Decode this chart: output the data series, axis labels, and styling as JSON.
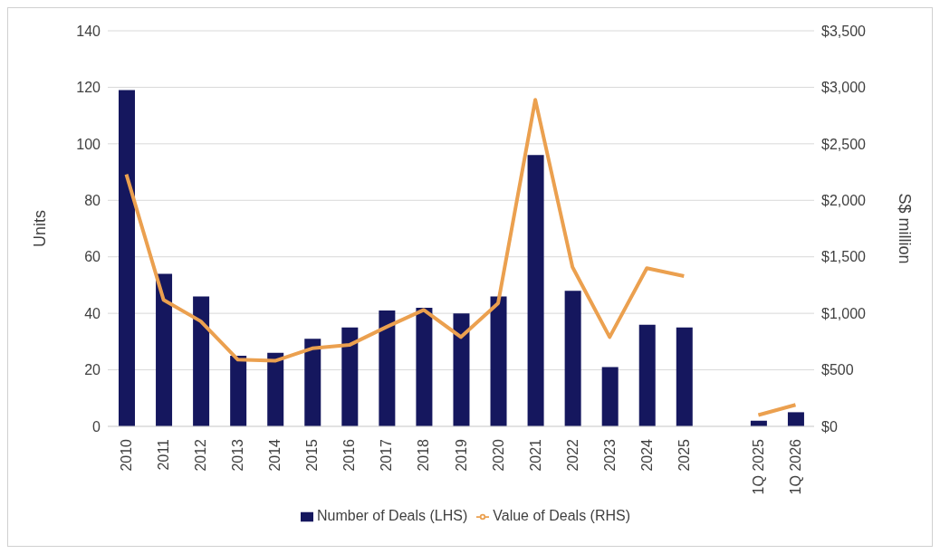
{
  "chart_data": {
    "type": "bar",
    "ylabel": "Units",
    "y2label": "S$ million",
    "categories": [
      "2010",
      "2011",
      "2012",
      "2013",
      "2014",
      "2015",
      "2016",
      "2017",
      "2018",
      "2019",
      "2020",
      "2021",
      "2022",
      "2023",
      "2024",
      "2025",
      null,
      "1Q 2025",
      "1Q 2026"
    ],
    "series": [
      {
        "name": "Number of Deals (LHS)",
        "color": "#15175e",
        "values": [
          119,
          54,
          46,
          25,
          26,
          31,
          35,
          41,
          42,
          40,
          46,
          96,
          48,
          21,
          36,
          35,
          null,
          2,
          5
        ]
      },
      {
        "name": "Value of Deals (RHS)",
        "type": "line",
        "axis": "y2",
        "color": "#eba04f",
        "values": [
          2230,
          1120,
          930,
          590,
          580,
          690,
          720,
          880,
          1030,
          790,
          1090,
          2890,
          1410,
          790,
          1400,
          1330,
          null,
          100,
          190
        ]
      }
    ],
    "ylim": [
      0,
      140
    ],
    "yticks": [
      0,
      20,
      40,
      60,
      80,
      100,
      120,
      140
    ],
    "y2lim": [
      0,
      3500
    ],
    "y2ticks": [
      {
        "value": 0,
        "label": "$0"
      },
      {
        "value": 500,
        "label": "$500"
      },
      {
        "value": 1000,
        "label": "$1,000"
      },
      {
        "value": 1500,
        "label": "$1,500"
      },
      {
        "value": 2000,
        "label": "$2,000"
      },
      {
        "value": 2500,
        "label": "$2,500"
      },
      {
        "value": 3000,
        "label": "$3,000"
      },
      {
        "value": 3500,
        "label": "$3,500"
      }
    ],
    "grid": "y",
    "legend": "bottom",
    "marker": "none",
    "line_style": "solid"
  }
}
